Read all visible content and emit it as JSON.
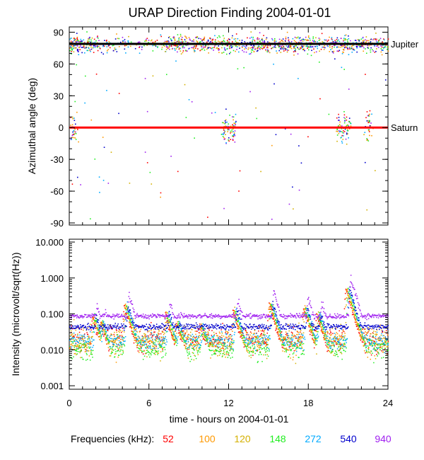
{
  "title": "URAP Direction Finding  2004-01-01",
  "chart_data": [
    {
      "type": "scatter",
      "ylabel": "Azimuthal angle (deg)",
      "xlim": [
        0,
        24
      ],
      "ylim": [
        -92,
        95
      ],
      "yticks": [
        90,
        60,
        30,
        0,
        -30,
        -60,
        -90
      ],
      "yticklabels": [
        "90",
        "60",
        "30",
        "0",
        "-30",
        "-60",
        "-90"
      ],
      "reference_lines": [
        {
          "name": "Jupiter",
          "value": 79,
          "color": "#000000"
        },
        {
          "name": "Saturn",
          "value": 0,
          "color": "#ff0000"
        }
      ]
    },
    {
      "type": "scatter",
      "ylabel": "Intensity (microvolt/sqrt(Hz))",
      "yscale": "log",
      "xlim": [
        0,
        24
      ],
      "ylim": [
        0.0008,
        12
      ],
      "yticks": [
        10,
        1,
        0.1,
        0.01,
        0.001
      ],
      "yticklabels": [
        "10.000",
        "1.000",
        "0.100",
        "0.010",
        "0.001"
      ],
      "xticks": [
        0,
        6,
        12,
        18,
        24
      ],
      "xticklabels": [
        "0",
        "6",
        "12",
        "18",
        "24"
      ],
      "xlabel": "time - hours on 2004-01-01"
    }
  ],
  "legend": {
    "label": "Frequencies (kHz):",
    "entries": [
      {
        "label": "52",
        "color": "#ff0000"
      },
      {
        "label": "100",
        "color": "#ff9900"
      },
      {
        "label": "120",
        "color": "#d4b000"
      },
      {
        "label": "148",
        "color": "#22ee22"
      },
      {
        "label": "272",
        "color": "#00aaff"
      },
      {
        "label": "540",
        "color": "#0000cc"
      },
      {
        "label": "940",
        "color": "#a020f0"
      }
    ]
  },
  "series": [
    {
      "name": "52",
      "color": "#ff0000",
      "baseline": 0.02,
      "noise": 1.5
    },
    {
      "name": "100",
      "color": "#ff9900",
      "baseline": 0.018,
      "noise": 1.6
    },
    {
      "name": "120",
      "color": "#d4b000",
      "baseline": 0.016,
      "noise": 1.6
    },
    {
      "name": "148",
      "color": "#22ee22",
      "baseline": 0.011,
      "noise": 1.4
    },
    {
      "name": "272",
      "color": "#00aaff",
      "baseline": 0.018,
      "noise": 1.3
    },
    {
      "name": "540",
      "color": "#0000cc",
      "baseline": 0.045,
      "noise": 1.1
    },
    {
      "name": "940",
      "color": "#a020f0",
      "baseline": 0.09,
      "noise": 1.08
    }
  ],
  "bursts": [
    {
      "t": 1.7,
      "peak": 0.18
    },
    {
      "t": 2.3,
      "peak": 0.12
    },
    {
      "t": 4.1,
      "peak": 0.35
    },
    {
      "t": 7.2,
      "peak": 0.2
    },
    {
      "t": 8.0,
      "peak": 0.12
    },
    {
      "t": 9.8,
      "peak": 0.1
    },
    {
      "t": 12.3,
      "peak": 0.25
    },
    {
      "t": 15.0,
      "peak": 0.4
    },
    {
      "t": 17.6,
      "peak": 0.3
    },
    {
      "t": 18.6,
      "peak": 0.2
    },
    {
      "t": 20.8,
      "peak": 1.0
    }
  ]
}
